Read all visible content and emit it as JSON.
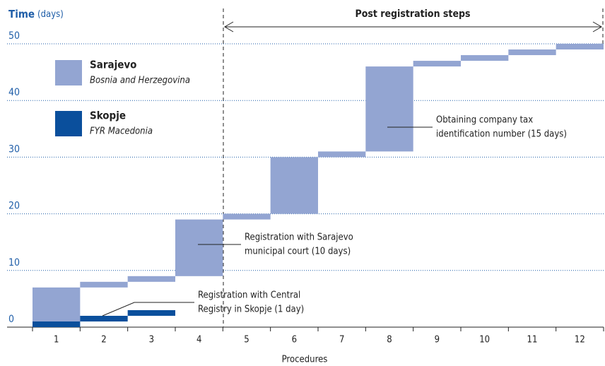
{
  "chart_data": {
    "type": "waterfall",
    "title": "Post registration steps",
    "y_label": {
      "main": "Time",
      "unit": "(days)"
    },
    "x_label": "Procedures",
    "categories": [
      "1",
      "2",
      "3",
      "4",
      "5",
      "6",
      "7",
      "8",
      "9",
      "10",
      "11",
      "12"
    ],
    "series": [
      {
        "name": "Sarajevo",
        "country": "Bosnia and Herzegovina",
        "color": "#93a5d2",
        "values": [
          7,
          1,
          1,
          10,
          1,
          10,
          1,
          15,
          1,
          1,
          1,
          1
        ]
      },
      {
        "name": "Skopje",
        "country": "FYR Macedonia",
        "color": "#0a4f9c",
        "values": [
          1,
          1,
          1,
          null,
          null,
          null,
          null,
          null,
          null,
          null,
          null,
          null
        ]
      }
    ],
    "ylim": [
      0,
      50
    ],
    "yticks": [
      0,
      10,
      20,
      30,
      40,
      50
    ],
    "grid": true,
    "annotations": [
      {
        "lines": [
          "Obtaining company tax",
          "identification number (15 days)"
        ]
      },
      {
        "lines": [
          "Registration with Sarajevo",
          "municipal court (10 days)"
        ]
      },
      {
        "lines": [
          "Registration with Central",
          "Registry in Skopje (1 day)"
        ]
      }
    ]
  }
}
